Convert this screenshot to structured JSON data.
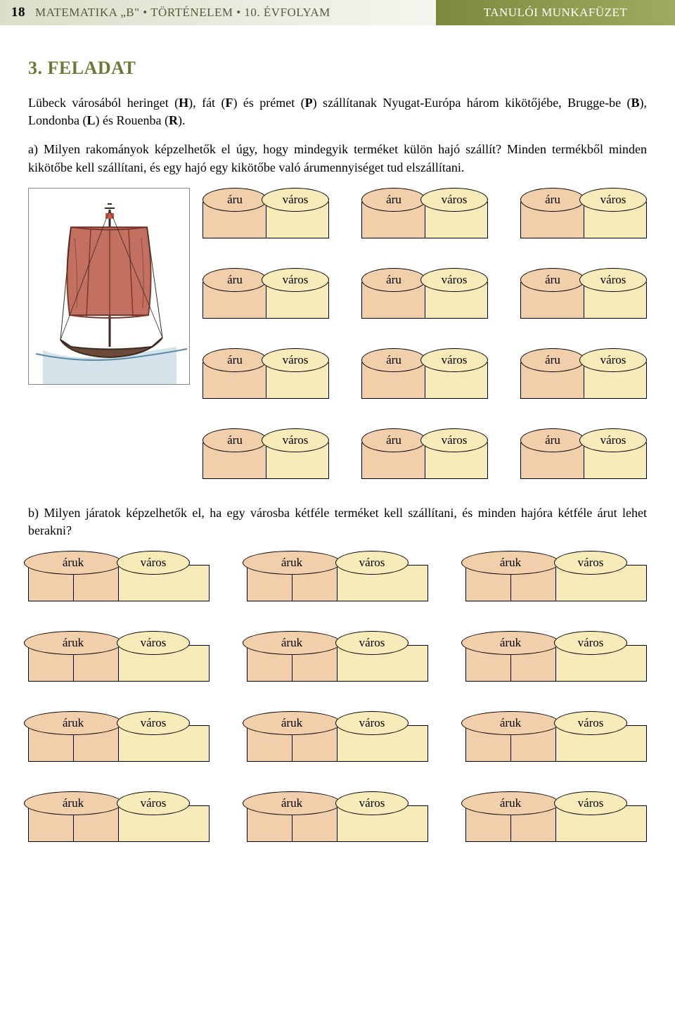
{
  "header": {
    "page_number": "18",
    "left_text": "MATEMATIKA „B\" • TÖRTÉNELEM • 10. ÉVFOLYAM",
    "right_text": "TANULÓI MUNKAFÜZET"
  },
  "task_heading": "3. FELADAT",
  "intro_text_parts": {
    "p1a": "Lübeck városából heringet (",
    "H": "H",
    "p1b": "), fát (",
    "F": "F",
    "p1c": ") és prémet (",
    "P": "P",
    "p1d": ") szállítanak Nyugat-Európa három kikötőjébe, Brugge-be (",
    "B": "B",
    "p1e": "), Londonba (",
    "L": "L",
    "p1f": ") és Rouenba (",
    "R": "R",
    "p1g": ")."
  },
  "question_a": "a) Milyen rakományok képzelhetők el úgy, hogy mindegyik terméket külön hajó szállít? Minden termékből minden kikötőbe kell szállítani, és egy hajó egy kikötőbe való árumennyiséget tud elszállítani.",
  "question_b": "b) Milyen járatok képzelhetők el, ha egy városba kétféle terméket kell szállítani, és minden hajóra kétféle árut lehet berakni?",
  "labels": {
    "aru": "áru",
    "varos": "város",
    "aruk": "áruk"
  },
  "colors": {
    "header_left_bg_from": "#d9dfc9",
    "header_left_bg_to": "#f5f6ef",
    "header_right_bg_from": "#7d8a3e",
    "header_right_bg_to": "#9faa5e",
    "heading_color": "#6b7936",
    "pill_aru_bg": "#f2cfab",
    "pill_varos_bg": "#f7ecb9",
    "box_aru_bg": "#f2cfab",
    "box_varos_bg": "#f7ecb9"
  },
  "grid_a": {
    "rows": 4,
    "cols": 3
  },
  "grid_b": {
    "rows": 4,
    "cols": 3
  },
  "ship_illustration": {
    "description": "sailing-ship-illustration",
    "sail_color": "#a85a4a",
    "hull_color": "#6b4a3a",
    "sea_color": "#7fa8c2"
  }
}
